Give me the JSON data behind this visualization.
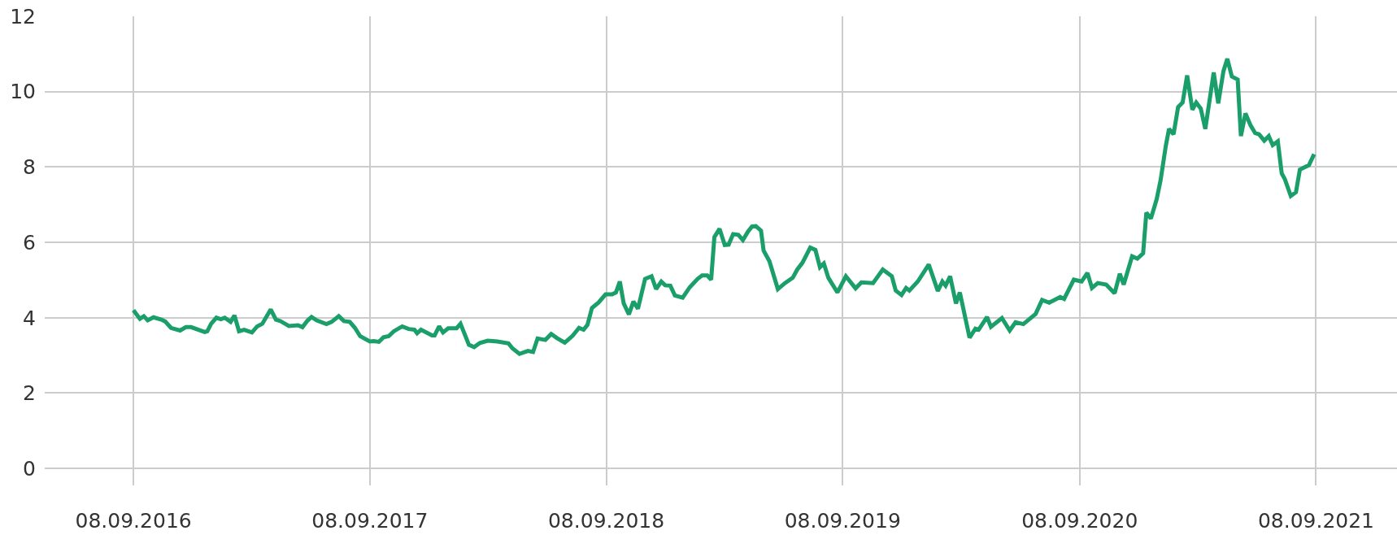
{
  "chart_data": {
    "type": "line",
    "x": [
      "2016-09-08",
      "2016-09-18",
      "2016-09-24",
      "2016-09-30",
      "2016-10-09",
      "2016-10-21",
      "2016-10-27",
      "2016-11-05",
      "2016-11-19",
      "2016-11-28",
      "2016-12-06",
      "2016-12-27",
      "2016-12-31",
      "2017-01-06",
      "2017-01-14",
      "2017-01-21",
      "2017-01-27",
      "2017-02-05",
      "2017-02-11",
      "2017-02-18",
      "2017-02-26",
      "2017-03-10",
      "2017-03-18",
      "2017-03-26",
      "2017-04-08",
      "2017-04-16",
      "2017-04-23",
      "2017-05-06",
      "2017-05-20",
      "2017-05-27",
      "2017-06-04",
      "2017-06-10",
      "2017-06-18",
      "2017-07-03",
      "2017-07-11",
      "2017-07-22",
      "2017-07-30",
      "2017-08-08",
      "2017-08-16",
      "2017-08-24",
      "2017-09-08",
      "2017-09-14",
      "2017-09-22",
      "2017-09-29",
      "2017-10-07",
      "2017-10-15",
      "2017-10-28",
      "2017-11-07",
      "2017-11-16",
      "2017-11-20",
      "2017-11-26",
      "2017-12-13",
      "2017-12-17",
      "2017-12-24",
      "2017-12-30",
      "2018-01-07",
      "2018-01-20",
      "2018-01-26",
      "2018-02-08",
      "2018-02-16",
      "2018-02-25",
      "2018-03-09",
      "2018-03-24",
      "2018-04-10",
      "2018-04-16",
      "2018-04-27",
      "2018-05-10",
      "2018-05-18",
      "2018-05-25",
      "2018-06-06",
      "2018-06-15",
      "2018-06-24",
      "2018-07-06",
      "2018-07-18",
      "2018-07-28",
      "2018-08-04",
      "2018-08-10",
      "2018-08-17",
      "2018-08-27",
      "2018-09-07",
      "2018-09-17",
      "2018-09-23",
      "2018-09-29",
      "2018-10-05",
      "2018-10-13",
      "2018-10-20",
      "2018-10-27",
      "2018-11-07",
      "2018-11-17",
      "2018-11-24",
      "2018-12-02",
      "2018-12-08",
      "2018-12-16",
      "2018-12-23",
      "2019-01-04",
      "2019-01-15",
      "2019-01-27",
      "2019-02-03",
      "2019-02-11",
      "2019-02-17",
      "2019-02-22",
      "2019-03-02",
      "2019-03-10",
      "2019-03-16",
      "2019-03-23",
      "2019-03-31",
      "2019-04-07",
      "2019-04-15",
      "2019-04-21",
      "2019-04-27",
      "2019-05-05",
      "2019-05-09",
      "2019-05-18",
      "2019-05-31",
      "2019-06-11",
      "2019-06-23",
      "2019-06-30",
      "2019-07-08",
      "2019-07-20",
      "2019-07-28",
      "2019-08-04",
      "2019-08-10",
      "2019-08-17",
      "2019-08-31",
      "2019-09-13",
      "2019-09-28",
      "2019-10-07",
      "2019-10-25",
      "2019-11-09",
      "2019-11-23",
      "2019-11-29",
      "2019-12-08",
      "2019-12-15",
      "2019-12-20",
      "2020-01-02",
      "2020-01-19",
      "2020-02-02",
      "2020-02-09",
      "2020-02-14",
      "2020-02-21",
      "2020-03-01",
      "2020-03-07",
      "2020-03-22",
      "2020-03-31",
      "2020-04-05",
      "2020-04-18",
      "2020-04-24",
      "2020-05-11",
      "2020-05-23",
      "2020-06-01",
      "2020-06-13",
      "2020-07-02",
      "2020-07-12",
      "2020-07-23",
      "2020-08-09",
      "2020-08-15",
      "2020-08-30",
      "2020-09-11",
      "2020-09-20",
      "2020-09-27",
      "2020-10-06",
      "2020-10-19",
      "2020-11-01",
      "2020-11-09",
      "2020-11-15",
      "2020-11-28",
      "2020-12-06",
      "2020-12-15",
      "2020-12-20",
      "2020-12-27",
      "2021-01-05",
      "2021-01-11",
      "2021-01-19",
      "2021-01-24",
      "2021-01-31",
      "2021-02-07",
      "2021-02-14",
      "2021-02-21",
      "2021-03-01",
      "2021-03-07",
      "2021-03-14",
      "2021-03-21",
      "2021-04-03",
      "2021-04-10",
      "2021-04-18",
      "2021-04-24",
      "2021-05-01",
      "2021-05-10",
      "2021-05-15",
      "2021-05-22",
      "2021-05-30",
      "2021-06-06",
      "2021-06-12",
      "2021-06-20",
      "2021-06-27",
      "2021-07-03",
      "2021-07-11",
      "2021-07-17",
      "2021-07-22",
      "2021-07-31",
      "2021-08-08",
      "2021-08-14",
      "2021-08-28",
      "2021-09-05"
    ],
    "series": [
      {
        "color": "#1a9e6a",
        "values": [
          4.2,
          3.97,
          4.04,
          3.93,
          4.01,
          3.95,
          3.9,
          3.73,
          3.66,
          3.75,
          3.75,
          3.62,
          3.64,
          3.84,
          4.0,
          3.96,
          4.0,
          3.89,
          4.06,
          3.64,
          3.68,
          3.61,
          3.77,
          3.84,
          4.22,
          3.95,
          3.91,
          3.78,
          3.8,
          3.75,
          3.93,
          4.02,
          3.93,
          3.83,
          3.89,
          4.04,
          3.91,
          3.89,
          3.73,
          3.51,
          3.37,
          3.38,
          3.36,
          3.48,
          3.51,
          3.64,
          3.77,
          3.7,
          3.68,
          3.59,
          3.68,
          3.53,
          3.53,
          3.77,
          3.61,
          3.72,
          3.72,
          3.84,
          3.28,
          3.22,
          3.33,
          3.39,
          3.37,
          3.32,
          3.19,
          3.04,
          3.12,
          3.09,
          3.45,
          3.41,
          3.57,
          3.46,
          3.34,
          3.52,
          3.73,
          3.68,
          3.81,
          4.26,
          4.4,
          4.62,
          4.62,
          4.67,
          4.96,
          4.38,
          4.09,
          4.43,
          4.24,
          5.03,
          5.1,
          4.76,
          4.96,
          4.86,
          4.85,
          4.59,
          4.53,
          4.81,
          5.03,
          5.12,
          5.12,
          5.01,
          6.14,
          6.36,
          5.93,
          5.94,
          6.22,
          6.2,
          6.06,
          6.29,
          6.42,
          6.43,
          6.31,
          5.78,
          5.5,
          4.76,
          4.92,
          5.06,
          5.28,
          5.46,
          5.86,
          5.8,
          5.34,
          5.44,
          5.06,
          4.67,
          5.1,
          4.78,
          4.94,
          4.92,
          5.28,
          5.1,
          4.72,
          4.6,
          4.79,
          4.72,
          4.96,
          5.41,
          4.71,
          4.96,
          4.85,
          5.1,
          4.38,
          4.67,
          3.47,
          3.71,
          3.68,
          4.02,
          3.76,
          3.99,
          3.66,
          3.88,
          3.83,
          4.1,
          4.47,
          4.4,
          4.55,
          4.5,
          5.01,
          4.96,
          5.19,
          4.79,
          4.92,
          4.88,
          4.65,
          5.17,
          4.88,
          5.63,
          5.57,
          5.71,
          6.79,
          6.63,
          7.15,
          7.65,
          8.56,
          9.01,
          8.87,
          9.59,
          9.71,
          10.43,
          9.52,
          9.71,
          9.55,
          9.01,
          10.51,
          9.69,
          10.54,
          10.87,
          10.4,
          10.32,
          8.82,
          9.42,
          9.1,
          8.9,
          8.87,
          8.7,
          8.82,
          8.58,
          8.68,
          7.83,
          7.67,
          7.23,
          7.33,
          7.93,
          8.05,
          8.34
        ]
      }
    ],
    "xlim": [
      "2016-04-24",
      "2022-01-11"
    ],
    "xticks": [
      {
        "value": "2016-09-08",
        "label": "08.09.2016"
      },
      {
        "value": "2017-09-08",
        "label": "08.09.2017"
      },
      {
        "value": "2018-09-08",
        "label": "08.09.2018"
      },
      {
        "value": "2019-09-08",
        "label": "08.09.2019"
      },
      {
        "value": "2020-09-08",
        "label": "08.09.2020"
      },
      {
        "value": "2021-09-08",
        "label": "08.09.2021"
      }
    ],
    "ylim": [
      -0.45,
      12
    ],
    "yticks": [
      0,
      2,
      4,
      6,
      8,
      10,
      12
    ],
    "grid": true,
    "marker": "none",
    "line_style": "solid"
  }
}
